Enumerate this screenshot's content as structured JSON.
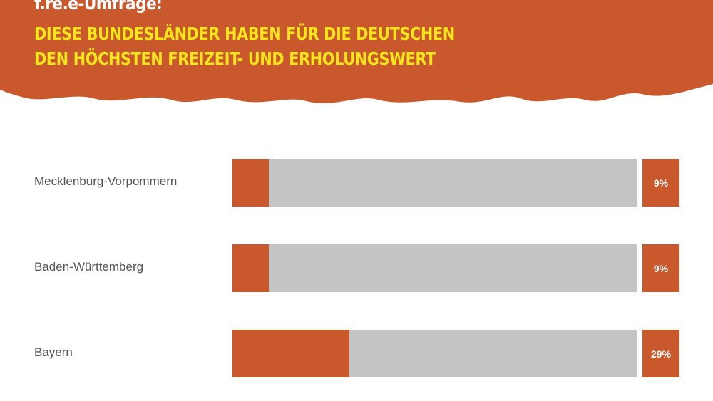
{
  "header": {
    "kicker": "f.re.e-Umfrage:",
    "title_line1": "DIESE BUNDESLÄNDER HABEN FÜR DIE DEUTSCHEN",
    "title_line2": "DEN HÖCHSTEN FREIZEIT- UND ERHOLUNGSWERT"
  },
  "colors": {
    "accent": "#c9592c",
    "title": "#f6e61b",
    "track": "#c4c4c4"
  },
  "chart_data": {
    "type": "bar",
    "orientation": "horizontal",
    "categories": [
      "Mecklenburg-Vorpommern",
      "Baden-Württemberg",
      "Bayern"
    ],
    "values": [
      9,
      9,
      29
    ],
    "value_labels": [
      "9%",
      "9%",
      "29%"
    ],
    "xlim": [
      0,
      100
    ],
    "grid": false
  }
}
